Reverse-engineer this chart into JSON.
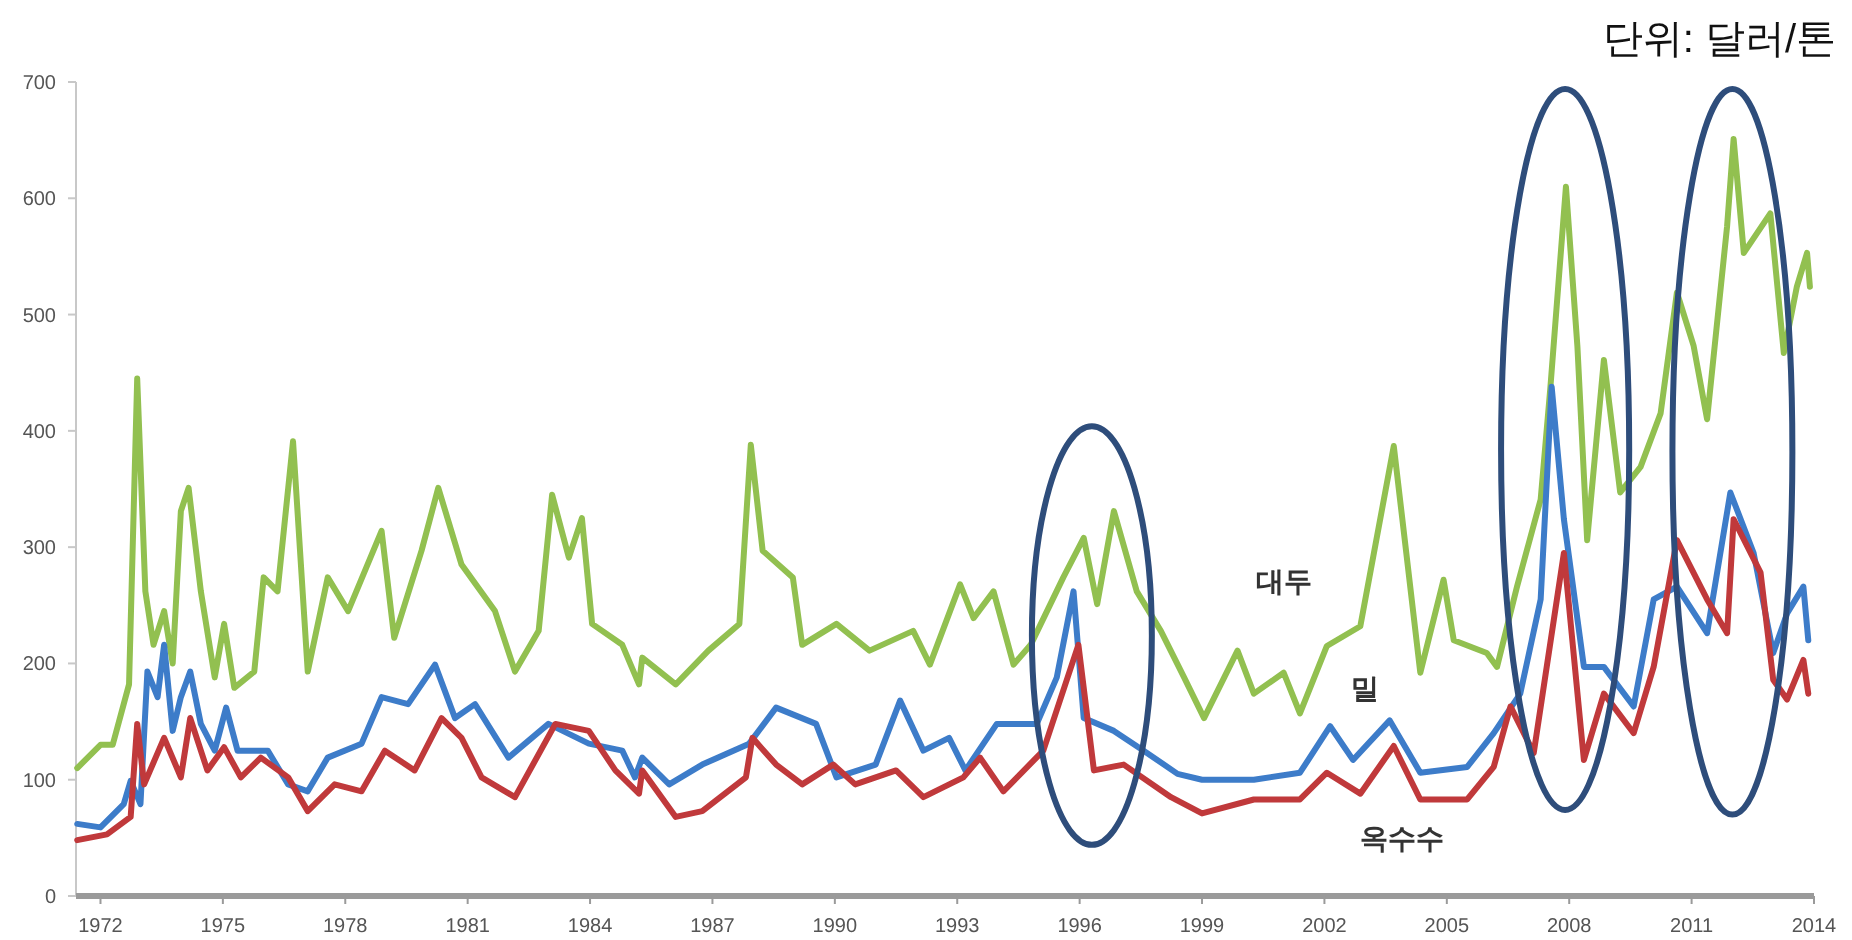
{
  "chart_data": {
    "type": "line",
    "annotations": [
      "단위: 달러/톤"
    ],
    "xlim": [
      1971.4,
      2014
    ],
    "xticks": [
      1972,
      1975,
      1978,
      1981,
      1984,
      1987,
      1990,
      1993,
      1996,
      1999,
      2002,
      2005,
      2008,
      2011,
      2014
    ],
    "ylim": [
      0,
      700
    ],
    "yticks": [
      0,
      100,
      200,
      300,
      400,
      500,
      600,
      700
    ],
    "series": [
      {
        "name": "대두",
        "color": "#92c050",
        "x": [
          1971.43,
          1972,
          1972.3,
          1972.7,
          1972.9,
          1973.1,
          1973.3,
          1973.56,
          1973.77,
          1973.97,
          1974.16,
          1974.46,
          1974.8,
          1975.03,
          1975.28,
          1975.77,
          1976.0,
          1976.34,
          1976.72,
          1977.08,
          1977.57,
          1978.07,
          1978.89,
          1979.2,
          1979.87,
          1980.28,
          1980.85,
          1981.67,
          1982.16,
          1982.74,
          1983.07,
          1983.48,
          1983.8,
          1984.05,
          1984.79,
          1985.2,
          1985.28,
          1986.1,
          1986.9,
          1987.66,
          1987.94,
          1988.23,
          1988.97,
          1989.2,
          1990.04,
          1990.85,
          1991.92,
          1992.33,
          1993.07,
          1993.4,
          1993.89,
          1994.38,
          1994.8,
          1995.6,
          1996.1,
          1996.43,
          1996.84,
          1997.4,
          1997.99,
          1998.56,
          1999.05,
          1999.87,
          2000.27,
          2001.0,
          2001.4,
          2002.06,
          2002.88,
          2003.7,
          2004.35,
          2004.92,
          2005.17,
          2005.98,
          2006.23,
          2006.72,
          2007.3,
          2007.54,
          2007.92,
          2008.2,
          2008.44,
          2008.85,
          2009.25,
          2009.75,
          2010.24,
          2010.64,
          2011.05,
          2011.38,
          2011.87,
          2012.03,
          2012.28,
          2012.93,
          2013.26,
          2013.58,
          2013.83,
          2013.9
        ],
        "values": [
          110,
          130,
          130,
          182,
          445,
          262,
          216,
          245,
          200,
          331,
          351,
          262,
          188,
          234,
          179,
          193,
          274,
          262,
          391,
          193,
          274,
          245,
          314,
          222,
          297,
          351,
          285,
          245,
          193,
          228,
          345,
          291,
          325,
          234,
          216,
          182,
          205,
          182,
          211,
          234,
          388,
          297,
          274,
          216,
          234,
          211,
          228,
          199,
          268,
          239,
          262,
          199,
          216,
          274,
          308,
          251,
          331,
          262,
          228,
          188,
          153,
          211,
          174,
          192,
          157,
          215,
          232,
          387,
          192,
          272,
          220,
          209,
          197,
          266,
          341,
          438,
          610,
          473,
          306,
          461,
          347,
          369,
          415,
          519,
          473,
          410,
          576,
          651,
          553,
          587,
          467,
          524,
          553,
          524
        ]
      },
      {
        "name": "밀",
        "color": "#3d7cc9",
        "x": [
          1971.43,
          1972,
          1972.57,
          1972.74,
          1972.98,
          1973.15,
          1973.4,
          1973.56,
          1973.77,
          1973.97,
          1974.2,
          1974.46,
          1974.8,
          1975.08,
          1975.36,
          1976.1,
          1976.6,
          1977.08,
          1977.57,
          1978.4,
          1978.89,
          1979.54,
          1980.2,
          1980.69,
          1981.18,
          1982,
          1982.98,
          1983.97,
          1984.79,
          1985.1,
          1985.28,
          1985.94,
          1986.75,
          1987.9,
          1988.56,
          1989.54,
          1990.04,
          1991.0,
          1991.6,
          1992.17,
          1992.8,
          1993.2,
          1993.97,
          1994.95,
          1995.44,
          1995.85,
          1996.1,
          1996.84,
          1997.57,
          1998.4,
          1999.0,
          2000.27,
          2001.4,
          2002.14,
          2002.7,
          2003.6,
          2004.35,
          2005.5,
          2006.15,
          2006.8,
          2007.3,
          2007.57,
          2007.87,
          2008.36,
          2008.85,
          2009.58,
          2010.07,
          2010.64,
          2011.38,
          2011.95,
          2012.52,
          2013.0,
          2013.34,
          2013.74,
          2013.86
        ],
        "values": [
          62,
          59,
          79,
          99,
          79,
          193,
          171,
          216,
          142,
          171,
          193,
          148,
          125,
          162,
          125,
          125,
          96,
          90,
          119,
          131,
          171,
          165,
          199,
          153,
          165,
          119,
          148,
          131,
          125,
          102,
          119,
          96,
          113,
          131,
          162,
          148,
          102,
          113,
          168,
          125,
          136,
          108,
          148,
          148,
          188,
          262,
          153,
          142,
          125,
          105,
          100,
          100,
          106,
          146,
          117,
          151,
          106,
          111,
          140,
          174,
          255,
          438,
          324,
          197,
          197,
          163,
          255,
          266,
          226,
          347,
          295,
          209,
          243,
          266,
          220
        ]
      },
      {
        "name": "옥수수",
        "color": "#c0393b",
        "x": [
          1971.43,
          1972.16,
          1972.74,
          1972.9,
          1973.07,
          1973.56,
          1973.97,
          1974.2,
          1974.62,
          1975.03,
          1975.44,
          1975.93,
          1976.6,
          1977.08,
          1977.74,
          1978.4,
          1978.97,
          1979.7,
          1980.36,
          1980.85,
          1981.34,
          1982.16,
          1983.15,
          1983.97,
          1984.62,
          1985.2,
          1985.28,
          1986.1,
          1986.75,
          1987.82,
          1987.98,
          1988.56,
          1989.2,
          1989.96,
          1990.5,
          1991.5,
          1992.17,
          1993.15,
          1993.56,
          1994.13,
          1995.11,
          1995.97,
          1996.35,
          1997.08,
          1998.24,
          1999.0,
          2000.27,
          2001.4,
          2002.06,
          2002.88,
          2003.7,
          2004.35,
          2005.5,
          2006.15,
          2006.56,
          2007.13,
          2007.87,
          2008.36,
          2008.85,
          2009.58,
          2010.07,
          2010.64,
          2011.38,
          2011.87,
          2012.03,
          2012.69,
          2013.0,
          2013.34,
          2013.74,
          2013.86
        ],
        "values": [
          48,
          53,
          68,
          148,
          96,
          136,
          102,
          153,
          108,
          128,
          102,
          119,
          102,
          73,
          96,
          90,
          125,
          108,
          153,
          136,
          102,
          85,
          148,
          142,
          108,
          88,
          108,
          68,
          73,
          102,
          136,
          113,
          96,
          113,
          96,
          108,
          85,
          102,
          119,
          90,
          125,
          216,
          108,
          113,
          85,
          71,
          83,
          83,
          106,
          88,
          129,
          83,
          83,
          111,
          163,
          123,
          295,
          117,
          174,
          140,
          197,
          306,
          255,
          226,
          324,
          278,
          186,
          169,
          203,
          174
        ]
      }
    ]
  }
}
